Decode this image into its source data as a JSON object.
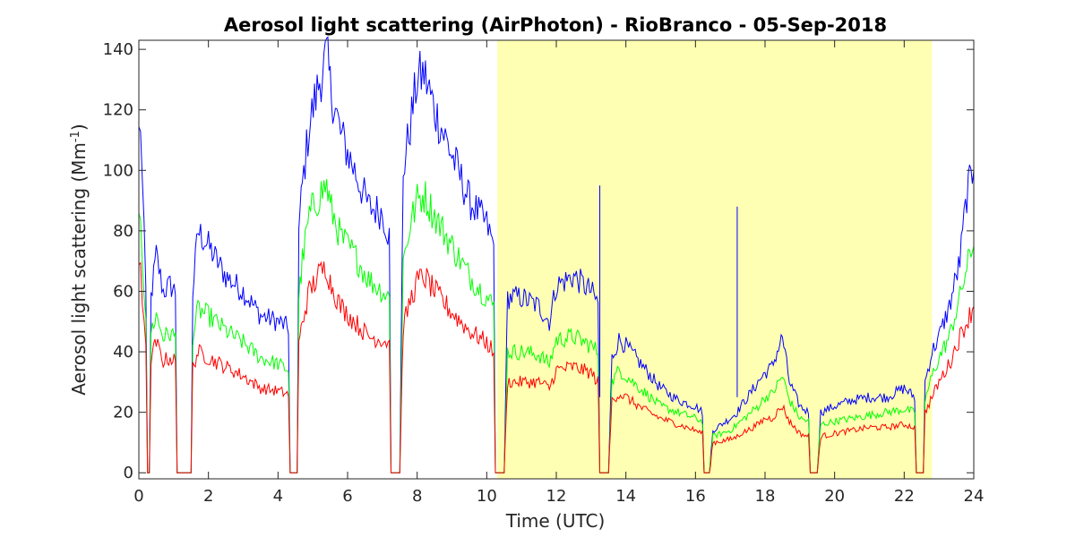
{
  "chart_data": {
    "type": "line",
    "title": "Aerosol light scattering (AirPhoton) - RioBranco - 05-Sep-2018",
    "xlabel": "Time (UTC)",
    "ylabel_main": "Aerosol light scattering (Mm",
    "ylabel_sup": "-1",
    "ylabel_close": ")",
    "xlim": [
      0,
      24
    ],
    "ylim": [
      -2,
      143
    ],
    "xticks": [
      0,
      2,
      4,
      6,
      8,
      10,
      12,
      14,
      16,
      18,
      20,
      22,
      24
    ],
    "yticks": [
      0,
      20,
      40,
      60,
      80,
      100,
      120,
      140
    ],
    "grid": false,
    "legend": "none",
    "highlight_span": {
      "x": [
        10.3,
        22.8
      ],
      "color": "#ffffb3"
    },
    "series": [
      {
        "color": "#0000ff",
        "x": [
          0,
          0.05,
          0.1,
          0.15,
          0.2,
          0.25,
          0.3,
          0.35,
          0.5,
          0.7,
          0.9,
          1.05,
          1.1,
          1.15,
          1.45,
          1.5,
          1.55,
          1.7,
          2.0,
          2.5,
          3.0,
          3.5,
          4.0,
          4.3,
          4.35,
          4.4,
          4.45,
          4.55,
          4.6,
          4.7,
          4.9,
          5.2,
          5.4,
          5.5,
          5.8,
          6.2,
          6.6,
          7.0,
          7.2,
          7.25,
          7.3,
          7.45,
          7.5,
          7.6,
          7.8,
          8.0,
          8.2,
          8.5,
          9.0,
          9.5,
          10.0,
          10.2,
          10.25,
          10.3,
          10.45,
          10.5,
          10.6,
          11.0,
          11.5,
          11.8,
          12.0,
          12.5,
          13.0,
          13.2,
          13.25,
          13.3,
          13.45,
          13.5,
          13.6,
          13.8,
          14.0,
          14.5,
          15.0,
          15.5,
          16.0,
          16.2,
          16.25,
          16.35,
          16.4,
          16.5,
          17.0,
          17.2,
          17.3,
          17.5,
          17.8,
          18.0,
          18.2,
          18.5,
          18.7,
          19.0,
          19.25,
          19.3,
          19.45,
          19.5,
          19.6,
          20.0,
          20.5,
          21.0,
          21.5,
          22.0,
          22.3,
          22.35,
          22.4,
          22.5,
          22.55,
          22.6,
          22.8,
          23.0,
          23.3,
          23.6,
          23.8,
          24.0
        ],
        "y": [
          112,
          116,
          95,
          78,
          60,
          0,
          0,
          58,
          72,
          60,
          62,
          60,
          0,
          0,
          0,
          0,
          60,
          80,
          75,
          65,
          60,
          52,
          50,
          48,
          0,
          0,
          0,
          0,
          80,
          95,
          115,
          130,
          138,
          128,
          112,
          100,
          88,
          86,
          78,
          0,
          0,
          0,
          0,
          100,
          115,
          130,
          132,
          120,
          105,
          90,
          82,
          75,
          0,
          0,
          0,
          0,
          58,
          58,
          55,
          50,
          62,
          65,
          60,
          56,
          0,
          0,
          0,
          0,
          38,
          44,
          42,
          35,
          28,
          24,
          22,
          20,
          0,
          0,
          0,
          14,
          18,
          20,
          22,
          25,
          30,
          33,
          35,
          45,
          30,
          22,
          20,
          0,
          0,
          0,
          20,
          22,
          24,
          25,
          25,
          28,
          25,
          0,
          0,
          0,
          0,
          30,
          40,
          45,
          55,
          70,
          92,
          100
        ]
      },
      {
        "color": "#00ff00",
        "x": [
          0,
          0.05,
          0.1,
          0.15,
          0.2,
          0.25,
          0.3,
          0.35,
          0.5,
          0.7,
          0.9,
          1.05,
          1.1,
          1.15,
          1.45,
          1.5,
          1.55,
          1.7,
          2.0,
          2.5,
          3.0,
          3.5,
          4.0,
          4.3,
          4.35,
          4.4,
          4.45,
          4.55,
          4.6,
          4.7,
          4.9,
          5.2,
          5.4,
          5.5,
          5.8,
          6.2,
          6.6,
          7.0,
          7.2,
          7.25,
          7.3,
          7.45,
          7.5,
          7.6,
          7.8,
          8.0,
          8.2,
          8.5,
          9.0,
          9.5,
          10.0,
          10.2,
          10.25,
          10.3,
          10.45,
          10.5,
          10.6,
          11.0,
          11.5,
          11.8,
          12.0,
          12.5,
          13.0,
          13.2,
          13.25,
          13.3,
          13.45,
          13.5,
          13.6,
          13.8,
          14.0,
          14.5,
          15.0,
          15.5,
          16.0,
          16.2,
          16.25,
          16.35,
          16.4,
          16.5,
          17.0,
          17.2,
          17.3,
          17.5,
          17.8,
          18.0,
          18.2,
          18.5,
          18.7,
          19.0,
          19.25,
          19.3,
          19.45,
          19.5,
          19.6,
          20.0,
          20.5,
          21.0,
          21.5,
          22.0,
          22.3,
          22.35,
          22.4,
          22.5,
          22.55,
          22.6,
          22.8,
          23.0,
          23.3,
          23.6,
          23.8,
          24.0
        ],
        "y": [
          90,
          88,
          72,
          60,
          48,
          0,
          0,
          47,
          52,
          45,
          46,
          45,
          0,
          0,
          0,
          0,
          45,
          54,
          52,
          47,
          43,
          38,
          36,
          34,
          0,
          0,
          0,
          0,
          58,
          70,
          85,
          92,
          95,
          88,
          78,
          72,
          64,
          60,
          58,
          0,
          0,
          0,
          0,
          70,
          82,
          90,
          92,
          85,
          75,
          65,
          58,
          55,
          0,
          0,
          0,
          0,
          40,
          40,
          39,
          36,
          44,
          45,
          42,
          40,
          0,
          0,
          0,
          0,
          30,
          34,
          32,
          27,
          22,
          20,
          18,
          17,
          0,
          0,
          0,
          12,
          14,
          16,
          17,
          19,
          22,
          25,
          26,
          32,
          24,
          18,
          17,
          0,
          0,
          0,
          16,
          17,
          18,
          19,
          20,
          21,
          20,
          0,
          0,
          0,
          0,
          24,
          32,
          38,
          45,
          58,
          68,
          75
        ]
      },
      {
        "color": "#ff0000",
        "x": [
          0,
          0.05,
          0.1,
          0.15,
          0.2,
          0.25,
          0.3,
          0.35,
          0.5,
          0.7,
          0.9,
          1.05,
          1.1,
          1.15,
          1.45,
          1.5,
          1.55,
          1.7,
          2.0,
          2.5,
          3.0,
          3.5,
          4.0,
          4.3,
          4.35,
          4.4,
          4.45,
          4.55,
          4.6,
          4.7,
          4.9,
          5.2,
          5.4,
          5.5,
          5.8,
          6.2,
          6.6,
          7.0,
          7.2,
          7.25,
          7.3,
          7.45,
          7.5,
          7.6,
          7.8,
          8.0,
          8.2,
          8.5,
          9.0,
          9.5,
          10.0,
          10.2,
          10.25,
          10.3,
          10.45,
          10.5,
          10.6,
          11.0,
          11.5,
          11.8,
          12.0,
          12.5,
          13.0,
          13.2,
          13.25,
          13.3,
          13.45,
          13.5,
          13.6,
          13.8,
          14.0,
          14.5,
          15.0,
          15.5,
          16.0,
          16.2,
          16.25,
          16.35,
          16.4,
          16.5,
          17.0,
          17.2,
          17.3,
          17.5,
          17.8,
          18.0,
          18.2,
          18.5,
          18.7,
          19.0,
          19.25,
          19.3,
          19.45,
          19.5,
          19.6,
          20.0,
          20.5,
          21.0,
          21.5,
          22.0,
          22.3,
          22.35,
          22.4,
          22.5,
          22.55,
          22.6,
          22.8,
          23.0,
          23.3,
          23.6,
          23.8,
          24.0
        ],
        "y": [
          72,
          70,
          58,
          48,
          40,
          0,
          0,
          38,
          43,
          37,
          38,
          37,
          0,
          0,
          0,
          0,
          35,
          40,
          38,
          35,
          32,
          28,
          27,
          26,
          0,
          0,
          0,
          0,
          42,
          50,
          60,
          66,
          68,
          63,
          55,
          50,
          45,
          44,
          43,
          0,
          0,
          0,
          0,
          48,
          57,
          63,
          65,
          60,
          53,
          47,
          43,
          40,
          0,
          0,
          0,
          0,
          30,
          30,
          30,
          28,
          34,
          35,
          33,
          30,
          0,
          0,
          0,
          0,
          24,
          26,
          25,
          21,
          18,
          16,
          14,
          13,
          0,
          0,
          0,
          10,
          11,
          12,
          13,
          14,
          16,
          18,
          18,
          22,
          17,
          13,
          12,
          0,
          0,
          0,
          12,
          13,
          14,
          15,
          15,
          16,
          15,
          0,
          0,
          0,
          0,
          20,
          25,
          30,
          36,
          45,
          50,
          55
        ]
      }
    ],
    "spikes": [
      {
        "color": "#0000ff",
        "x": 13.25,
        "y": 95
      },
      {
        "color": "#0000ff",
        "x": 17.2,
        "y": 88
      }
    ]
  }
}
